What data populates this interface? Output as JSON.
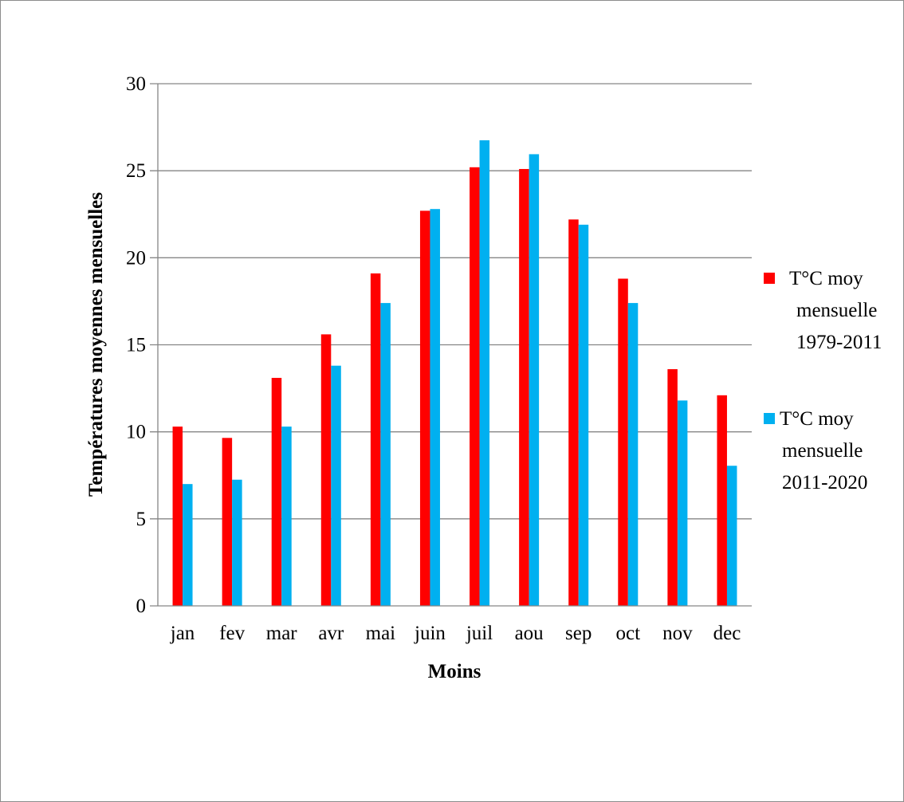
{
  "chart_data": {
    "type": "bar",
    "title": "",
    "xlabel": "Moins",
    "ylabel": "Températures moyennes mensuelles",
    "categories": [
      "jan",
      "fev",
      "mar",
      "avr",
      "mai",
      "juin",
      "juil",
      "aou",
      "sep",
      "oct",
      "nov",
      "dec"
    ],
    "series": [
      {
        "name": "T°C moy mensuelle 1979-2011",
        "legend_lines": [
          "T°C moy",
          "mensuelle",
          "1979-2011"
        ],
        "color": "#ff0000",
        "values": [
          10.3,
          9.65,
          13.1,
          15.6,
          19.1,
          22.7,
          25.2,
          25.1,
          22.2,
          18.8,
          13.6,
          12.1
        ]
      },
      {
        "name": "T°C moy mensuelle 2011-2020",
        "legend_lines": [
          "T°C moy",
          "mensuelle",
          "2011-2020"
        ],
        "color": "#00b0f0",
        "values": [
          7.0,
          7.25,
          10.3,
          13.8,
          17.4,
          22.8,
          26.75,
          25.95,
          21.9,
          17.4,
          11.8,
          8.05
        ]
      }
    ],
    "ylim": [
      0,
      30
    ],
    "yticks": [
      0,
      5,
      10,
      15,
      20,
      25,
      30
    ],
    "grid": true,
    "legend_position": "right"
  }
}
